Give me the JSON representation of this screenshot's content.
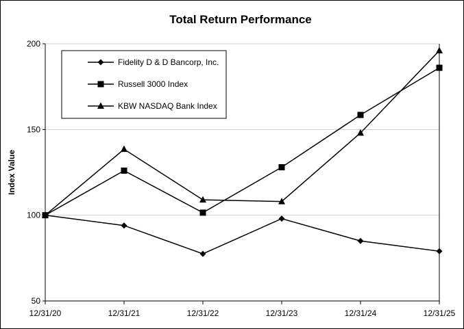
{
  "chart_data": {
    "type": "line",
    "title": "Total Return Performance",
    "ylabel": "Index Value",
    "xlabel": "",
    "categories": [
      "12/31/20",
      "12/31/21",
      "12/31/22",
      "12/31/23",
      "12/31/24",
      "12/31/25"
    ],
    "ylim": [
      50,
      200
    ],
    "yticks": [
      50,
      100,
      150,
      200
    ],
    "grid": true,
    "legend_position": "top-left",
    "series": [
      {
        "name": "Fidelity D & D Bancorp, Inc.",
        "marker": "diamond",
        "values": [
          100,
          94,
          77.5,
          98,
          85,
          79
        ]
      },
      {
        "name": "Russell 3000 Index",
        "marker": "square",
        "values": [
          100,
          126,
          101.5,
          128,
          158.5,
          186
        ]
      },
      {
        "name": "KBW NASDAQ Bank Index",
        "marker": "triangle",
        "values": [
          100,
          138.5,
          109,
          108,
          148,
          196
        ]
      }
    ]
  }
}
